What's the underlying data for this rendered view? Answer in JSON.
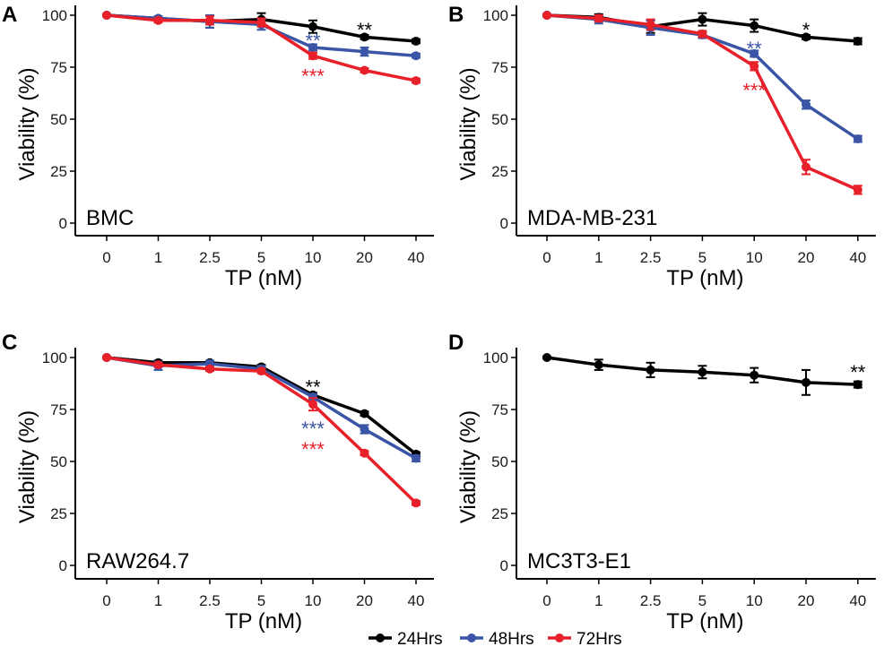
{
  "colors": {
    "24Hrs": "#000000",
    "48Hrs": "#3a55a5",
    "72Hrs": "#e8202a",
    "axis": "#000000"
  },
  "legend": {
    "items": [
      {
        "label": "24Hrs",
        "series": "24Hrs"
      },
      {
        "label": "48Hrs",
        "series": "48Hrs"
      },
      {
        "label": "72Hrs",
        "series": "72Hrs"
      }
    ]
  },
  "chart_data": [
    {
      "type": "line",
      "panel_letter": "A",
      "cell_line": "BMC",
      "xlabel": "TP (nM)",
      "ylabel": "Viability (%)",
      "categories": [
        "0",
        "1",
        "2.5",
        "5",
        "10",
        "20",
        "40"
      ],
      "ylim": [
        0,
        100
      ],
      "yticks": [
        0,
        25,
        50,
        75,
        100
      ],
      "series": [
        {
          "name": "24Hrs",
          "values": [
            100,
            98.5,
            97,
            98,
            94.5,
            89.5,
            87.5
          ],
          "errors": [
            0.5,
            1,
            3,
            3,
            3,
            1,
            1
          ]
        },
        {
          "name": "48Hrs",
          "values": [
            100,
            98.5,
            97,
            95.5,
            84.5,
            82.5,
            80.5
          ],
          "errors": [
            0.5,
            1,
            3,
            2.5,
            1.5,
            2,
            1
          ]
        },
        {
          "name": "72Hrs",
          "values": [
            100,
            97.5,
            97.5,
            96.5,
            80.5,
            73.5,
            68.5
          ],
          "errors": [
            0.5,
            1,
            2,
            2,
            1.5,
            1,
            1
          ]
        }
      ],
      "annotations": [
        {
          "text": "**",
          "category": "20",
          "value": 93,
          "series": "24Hrs"
        },
        {
          "text": "**",
          "category": "10",
          "value": 88,
          "series": "48Hrs"
        },
        {
          "text": "***",
          "category": "10",
          "value": 71,
          "series": "72Hrs"
        }
      ]
    },
    {
      "type": "line",
      "panel_letter": "B",
      "cell_line": "MDA-MB-231",
      "xlabel": "TP (nM)",
      "ylabel": "Viability (%)",
      "categories": [
        "0",
        "1",
        "2.5",
        "5",
        "10",
        "20",
        "40"
      ],
      "ylim": [
        0,
        100
      ],
      "yticks": [
        0,
        25,
        50,
        75,
        100
      ],
      "series": [
        {
          "name": "24Hrs",
          "values": [
            100,
            99,
            94.5,
            98,
            95,
            89.5,
            87.5
          ],
          "errors": [
            0.5,
            1.5,
            3,
            3,
            3,
            1,
            1.5
          ]
        },
        {
          "name": "48Hrs",
          "values": [
            100,
            98,
            94,
            90.5,
            81.5,
            57,
            40.5
          ],
          "errors": [
            0.5,
            2,
            3.5,
            1.5,
            1.5,
            2,
            1.5
          ]
        },
        {
          "name": "72Hrs",
          "values": [
            100,
            98.5,
            95.5,
            91,
            75.5,
            27,
            16
          ],
          "errors": [
            0.5,
            1.5,
            2.5,
            1.5,
            2,
            3.5,
            2
          ]
        }
      ],
      "annotations": [
        {
          "text": "*",
          "category": "20",
          "value": 93,
          "series": "24Hrs"
        },
        {
          "text": "**",
          "category": "10",
          "value": 84,
          "series": "48Hrs"
        },
        {
          "text": "***",
          "category": "10",
          "value": 64,
          "series": "72Hrs"
        }
      ]
    },
    {
      "type": "line",
      "panel_letter": "C",
      "cell_line": "RAW264.7",
      "xlabel": "TP (nM)",
      "ylabel": "Viability (%)",
      "categories": [
        "0",
        "1",
        "2.5",
        "5",
        "10",
        "20",
        "40"
      ],
      "ylim": [
        0,
        100
      ],
      "yticks": [
        0,
        25,
        50,
        75,
        100
      ],
      "series": [
        {
          "name": "24Hrs",
          "values": [
            100,
            97.5,
            97.5,
            95.5,
            82,
            73,
            53.5
          ],
          "errors": [
            0.5,
            1,
            1,
            1,
            1,
            1,
            1
          ]
        },
        {
          "name": "48Hrs",
          "values": [
            100,
            96,
            97,
            94.5,
            81,
            65.5,
            51.5
          ],
          "errors": [
            0.5,
            2,
            1.5,
            1.5,
            1.5,
            2,
            1.5
          ]
        },
        {
          "name": "72Hrs",
          "values": [
            100,
            96.5,
            94.5,
            93.5,
            77.5,
            54,
            30
          ],
          "errors": [
            0.5,
            1,
            1,
            1,
            3,
            1,
            1
          ]
        }
      ],
      "annotations": [
        {
          "text": "**",
          "category": "10",
          "value": 86,
          "series": "24Hrs"
        },
        {
          "text": "***",
          "category": "10",
          "value": 66,
          "series": "48Hrs"
        },
        {
          "text": "***",
          "category": "10",
          "value": 56,
          "series": "72Hrs"
        }
      ]
    },
    {
      "type": "line",
      "panel_letter": "D",
      "cell_line": "MC3T3-E1",
      "xlabel": "TP (nM)",
      "ylabel": "Viability (%)",
      "categories": [
        "0",
        "1",
        "2.5",
        "5",
        "10",
        "20",
        "40"
      ],
      "ylim": [
        0,
        100
      ],
      "yticks": [
        0,
        25,
        50,
        75,
        100
      ],
      "series": [
        {
          "name": "24Hrs",
          "values": [
            100,
            96.5,
            94,
            93,
            91.5,
            88,
            87
          ],
          "errors": [
            0.5,
            2.5,
            3.5,
            3,
            3.5,
            6,
            1.5
          ]
        }
      ],
      "annotations": [
        {
          "text": "**",
          "category": "40",
          "value": 93,
          "series": "24Hrs"
        }
      ]
    }
  ]
}
